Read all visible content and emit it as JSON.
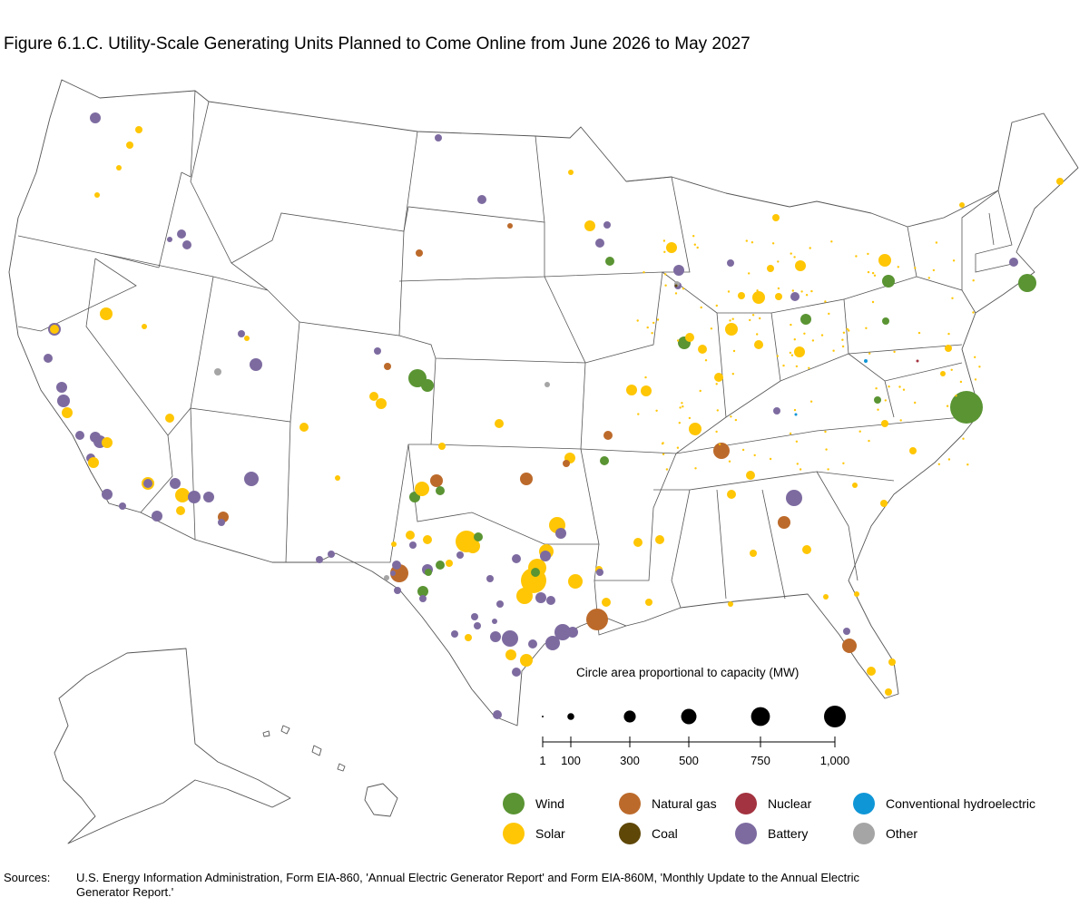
{
  "title": "Figure 6.1.C. Utility-Scale Generating Units Planned to Come Online from June 2026 to May 2027",
  "size_legend": {
    "caption": "Circle area proportional to capacity (MW)",
    "values": [
      1,
      100,
      300,
      500,
      750,
      1000
    ],
    "labels": [
      "1",
      "100",
      "300",
      "500",
      "750",
      "1,000"
    ]
  },
  "legend": [
    {
      "name": "Wind",
      "color": "#5a9433"
    },
    {
      "name": "Solar",
      "color": "#ffc605"
    },
    {
      "name": "Natural gas",
      "color": "#bc6a2b"
    },
    {
      "name": "Coal",
      "color": "#5f4708"
    },
    {
      "name": "Nuclear",
      "color": "#a33340"
    },
    {
      "name": "Battery",
      "color": "#7d6ba0"
    },
    {
      "name": "Conventional hydroelectric",
      "color": "#0f96d7"
    },
    {
      "name": "Other",
      "color": "#a5a5a5"
    }
  ],
  "sources": {
    "label": "Sources:",
    "text": "U.S. Energy Information Administration, Form EIA-860, 'Annual Electric Generator Report' and Form EIA-860M, 'Monthly Update to the Annual Electric Generator Report.'"
  }
}
